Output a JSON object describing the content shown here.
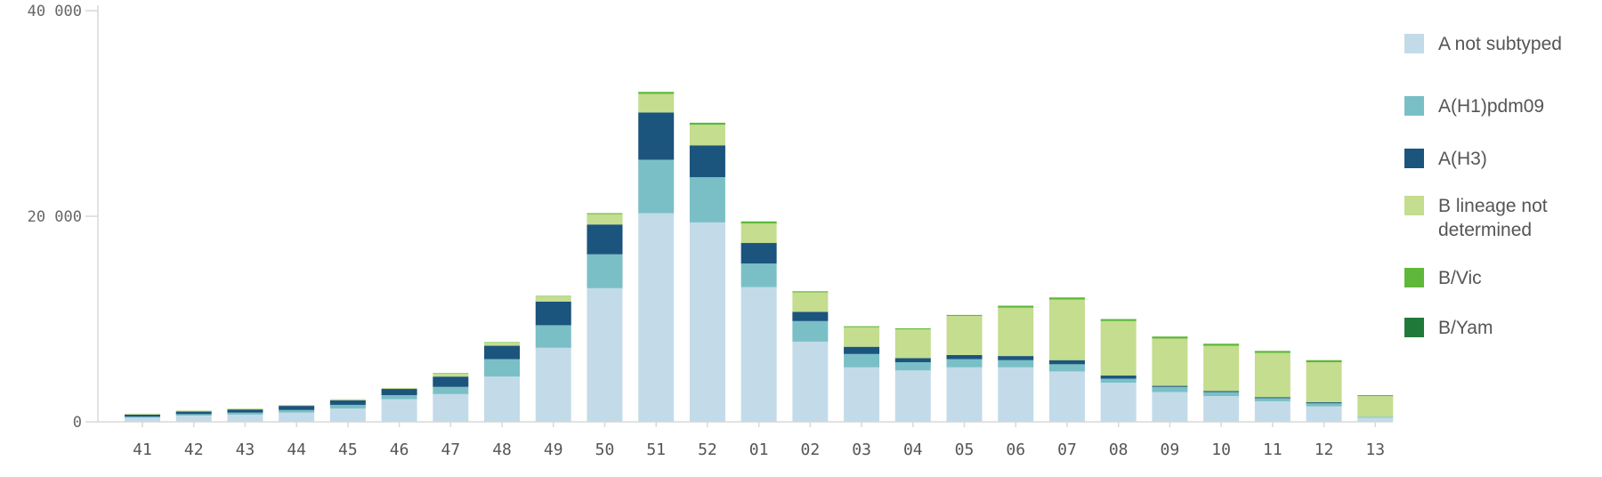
{
  "chart_data": {
    "type": "bar",
    "stacked": true,
    "categories": [
      "41",
      "42",
      "43",
      "44",
      "45",
      "46",
      "47",
      "48",
      "49",
      "50",
      "51",
      "52",
      "01",
      "02",
      "03",
      "04",
      "05",
      "06",
      "07",
      "08",
      "09",
      "10",
      "11",
      "12",
      "13"
    ],
    "series": [
      {
        "name": "A not subtyped",
        "color": "#c3dbe8",
        "values": [
          400,
          600,
          700,
          900,
          1300,
          2200,
          2700,
          4400,
          7200,
          13000,
          20300,
          19400,
          13100,
          7800,
          5300,
          5000,
          5300,
          5300,
          4900,
          3800,
          2900,
          2500,
          2000,
          1500,
          400
        ]
      },
      {
        "name": "A(H1)pdm09",
        "color": "#7abfc6",
        "values": [
          100,
          150,
          200,
          250,
          350,
          400,
          700,
          1700,
          2200,
          3300,
          5200,
          4400,
          2300,
          2000,
          1300,
          800,
          800,
          700,
          700,
          400,
          500,
          400,
          300,
          300,
          100
        ]
      },
      {
        "name": "A(H3)",
        "color": "#1b547d",
        "values": [
          200,
          250,
          300,
          400,
          450,
          600,
          1000,
          1300,
          2300,
          2900,
          4600,
          3100,
          2000,
          900,
          700,
          400,
          400,
          400,
          400,
          300,
          100,
          100,
          100,
          100,
          0
        ]
      },
      {
        "name": "B lineage not determined",
        "color": "#c4dd8e",
        "values": [
          100,
          100,
          100,
          100,
          100,
          100,
          300,
          300,
          500,
          1000,
          1800,
          2000,
          1900,
          1900,
          1900,
          2800,
          3800,
          4700,
          5900,
          5300,
          4600,
          4400,
          4300,
          3900,
          2000
        ]
      },
      {
        "name": "B/Vic",
        "color": "#5fb83a",
        "values": [
          0,
          0,
          0,
          0,
          0,
          0,
          50,
          50,
          50,
          100,
          200,
          200,
          200,
          100,
          100,
          100,
          100,
          200,
          200,
          200,
          200,
          200,
          200,
          200,
          100
        ]
      },
      {
        "name": "B/Yam",
        "color": "#1f7a3a",
        "values": [
          0,
          0,
          0,
          0,
          0,
          0,
          0,
          0,
          0,
          0,
          0,
          0,
          0,
          0,
          0,
          0,
          0,
          0,
          0,
          0,
          0,
          0,
          0,
          0,
          0
        ]
      }
    ],
    "yticks": [
      "40 000",
      "20 000",
      "0"
    ],
    "ytick_values": [
      40000,
      20000,
      0
    ],
    "ylim": [
      0,
      40000
    ],
    "legend_position": "right"
  }
}
